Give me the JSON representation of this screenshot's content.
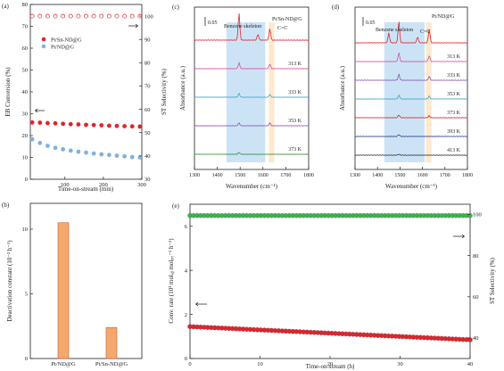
{
  "colors": {
    "ptsn": "#e0242c",
    "pt": "#7fb2de",
    "bar": "#f5a86e",
    "bar_edge": "#c8612a",
    "green": "#3cb44b",
    "red": "#e0242c",
    "benzene_band": "#bfdcf4",
    "cc_band": "#fbe3c2"
  },
  "chart_data": [
    {
      "panel": "(a)",
      "type": "scatter",
      "xlabel": "Time-on-stream (min)",
      "ylabel": "EB Conversion (%)",
      "y2label": "ST Selectivity (%)",
      "xlim": [
        10,
        300
      ],
      "xticks": [
        "100",
        "200",
        "300"
      ],
      "ylim": [
        0,
        80
      ],
      "yticks": [
        "0",
        "10",
        "20",
        "30",
        "40",
        "50",
        "60",
        "70",
        "80"
      ],
      "y2lim": [
        30,
        105
      ],
      "y2ticks": [
        "30",
        "40",
        "50",
        "60",
        "70",
        "80",
        "90",
        "100"
      ],
      "legend": [
        "Pt/Sn-ND@G",
        "Pt/ND@G"
      ],
      "series": [
        {
          "name": "Pt/Sn-ND@G",
          "axis": "y",
          "style": "filled-red",
          "x": [
            15,
            35,
            55,
            75,
            95,
            115,
            135,
            155,
            175,
            195,
            215,
            235,
            255,
            275,
            295
          ],
          "y": [
            26.0,
            25.9,
            25.7,
            25.6,
            25.4,
            25.2,
            25.1,
            24.9,
            24.8,
            24.7,
            24.5,
            24.4,
            24.3,
            24.2,
            24.1
          ]
        },
        {
          "name": "Pt/ND@G",
          "axis": "y",
          "style": "filled-blue",
          "x": [
            15,
            35,
            55,
            75,
            95,
            115,
            135,
            155,
            175,
            195,
            215,
            235,
            255,
            275,
            295
          ],
          "y": [
            18.3,
            16.6,
            15.3,
            14.4,
            13.7,
            13.1,
            12.6,
            12.2,
            11.8,
            11.4,
            11.1,
            10.8,
            10.5,
            10.2,
            10.0
          ]
        },
        {
          "name": "",
          "axis": "y2",
          "style": "open-red",
          "x": [
            15,
            35,
            55,
            75,
            95,
            115,
            135,
            155,
            175,
            195,
            215,
            235,
            255,
            275,
            295
          ],
          "y": [
            100,
            100,
            100,
            100,
            100,
            100,
            100,
            100,
            100,
            100,
            100,
            100,
            100,
            100,
            100
          ]
        }
      ]
    },
    {
      "panel": "(b)",
      "type": "bar",
      "ylabel": "Deactivation constant (10⁻² h⁻¹)",
      "categories": [
        "Pt/ND@G",
        "Pt/Sn-ND@G"
      ],
      "values": [
        10.5,
        2.4
      ],
      "ylim": [
        0,
        12
      ],
      "yticks": [
        "0",
        "5",
        "10"
      ]
    },
    {
      "panel": "(c)",
      "type": "line",
      "title": "Pt/Sn-ND@G",
      "xlabel": "Wavenumber (cm⁻¹)",
      "ylabel": "Absorbance (a.u.)",
      "xlim": [
        1300,
        1800
      ],
      "xticks": [
        "1300",
        "1400",
        "1500",
        "1600",
        "1700",
        "1800"
      ],
      "scale_label": "0.05",
      "band_labels": [
        "Benzene skeleton",
        "C=C"
      ],
      "bands": [
        [
          1440,
          1610
        ],
        [
          1625,
          1650
        ]
      ],
      "series": [
        {
          "name": "",
          "color": "#e0242c",
          "peaks": [
            [
              1495,
              0.28
            ],
            [
              1578,
              0.06
            ],
            [
              1630,
              0.12
            ]
          ]
        },
        {
          "name": "313 K",
          "color": "#d64fa0",
          "peaks": [
            [
              1495,
              0.06
            ],
            [
              1630,
              0.05
            ]
          ]
        },
        {
          "name": "333 K",
          "color": "#3aa6c9",
          "peaks": [
            [
              1495,
              0.04
            ],
            [
              1630,
              0.03
            ]
          ]
        },
        {
          "name": "353 K",
          "color": "#8a55b8",
          "peaks": [
            [
              1495,
              0.03
            ],
            [
              1630,
              0.03
            ]
          ]
        },
        {
          "name": "373 K",
          "color": "#3a8a3a",
          "peaks": [
            [
              1495,
              0.02
            ]
          ]
        }
      ]
    },
    {
      "panel": "(d)",
      "type": "line",
      "title": "Pt/ND@G",
      "xlabel": "Wavenumber (cm⁻¹)",
      "ylabel": "Absorbance (a.u.)",
      "xlim": [
        1300,
        1800
      ],
      "xticks": [
        "1300",
        "1400",
        "1500",
        "1600",
        "1700",
        "1800"
      ],
      "scale_label": "0.05",
      "band_labels": [
        "Benzene skeleton",
        "C=C"
      ],
      "bands": [
        [
          1430,
          1610
        ],
        [
          1615,
          1640
        ]
      ],
      "series": [
        {
          "name": "",
          "color": "#e0242c",
          "peaks": [
            [
              1450,
              0.1
            ],
            [
              1495,
              0.22
            ],
            [
              1578,
              0.06
            ],
            [
              1630,
              0.14
            ]
          ]
        },
        {
          "name": "313 K",
          "color": "#d64fa0",
          "peaks": [
            [
              1495,
              0.09
            ],
            [
              1630,
              0.06
            ]
          ]
        },
        {
          "name": "333 K",
          "color": "#8a55b8",
          "peaks": [
            [
              1495,
              0.06
            ],
            [
              1630,
              0.04
            ]
          ]
        },
        {
          "name": "353 K",
          "color": "#3aa6c9",
          "peaks": [
            [
              1495,
              0.04
            ],
            [
              1630,
              0.03
            ]
          ]
        },
        {
          "name": "373 K",
          "color": "#e0242c",
          "peaks": [
            [
              1495,
              0.03
            ],
            [
              1630,
              0.02
            ]
          ]
        },
        {
          "name": "393 K",
          "color": "#2c3e8a",
          "peaks": [
            [
              1495,
              0.02
            ]
          ]
        },
        {
          "name": "413 K",
          "color": "#333333",
          "peaks": [
            [
              1495,
              0.01
            ]
          ]
        }
      ]
    },
    {
      "panel": "(e)",
      "type": "scatter",
      "xlabel": "Time-on-stream (h)",
      "ylabel": "Conv. rate (10² molₑᵦ molₚₜ⁻¹ h⁻¹)",
      "y2label": "ST Selectivity (%)",
      "xlim": [
        0,
        40
      ],
      "xticks": [
        "0",
        "10",
        "20",
        "30",
        "40"
      ],
      "ylim": [
        0,
        7
      ],
      "yticks": [
        "0",
        "2",
        "4",
        "6"
      ],
      "y2lim": [
        30,
        105
      ],
      "y2ticks": [
        "40",
        "60",
        "80",
        "100"
      ],
      "series": [
        {
          "name": "",
          "axis": "y",
          "style": "filled-red",
          "x_start": 0,
          "x_end": 40,
          "y_start": 1.45,
          "y_end": 0.85,
          "n": 80
        },
        {
          "name": "",
          "axis": "y2",
          "style": "filled-green",
          "x_start": 0,
          "x_end": 40,
          "y_start": 99.5,
          "y_end": 99.5,
          "n": 80
        }
      ]
    }
  ]
}
